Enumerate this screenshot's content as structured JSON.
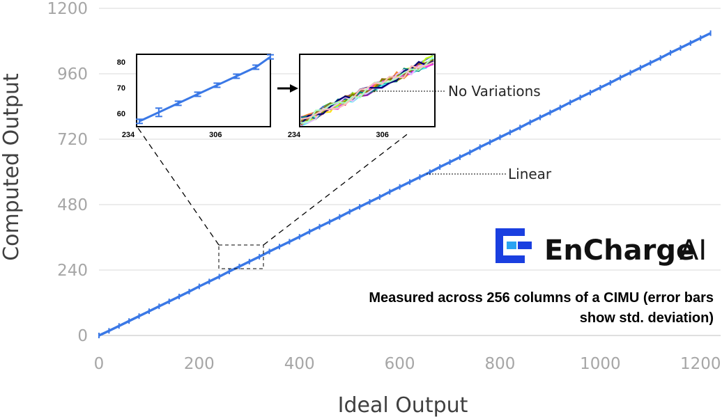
{
  "chart_data": {
    "type": "line",
    "xlabel": "Ideal Output",
    "ylabel": "Computed Output",
    "xlim": [
      0,
      1240
    ],
    "ylim": [
      0,
      1200
    ],
    "x_ticks": [
      "0",
      "200",
      "400",
      "600",
      "800",
      "1000",
      "1200"
    ],
    "y_ticks": [
      "0",
      "240",
      "480",
      "720",
      "960",
      "1200"
    ],
    "grid": "horizontal",
    "series": [
      {
        "x": [
          0,
          20,
          40,
          60,
          80,
          100,
          120,
          140,
          160,
          180,
          200,
          220,
          240,
          260,
          280,
          300,
          320,
          340,
          360,
          380,
          400,
          420,
          440,
          460,
          480,
          500,
          520,
          540,
          560,
          580,
          600,
          620,
          640,
          660,
          680,
          700,
          720,
          740,
          760,
          780,
          800,
          820,
          840,
          860,
          880,
          900,
          920,
          940,
          960,
          980,
          1000,
          1020,
          1040,
          1060,
          1080,
          1100,
          1120,
          1140,
          1160,
          1180,
          1200,
          1220
        ],
        "y": [
          0,
          17,
          35,
          53,
          71,
          89,
          107,
          125,
          143,
          161,
          180,
          198,
          216,
          235,
          253,
          271,
          289,
          308,
          326,
          344,
          362,
          381,
          399,
          417,
          435,
          454,
          472,
          490,
          508,
          527,
          545,
          563,
          581,
          599,
          618,
          636,
          654,
          672,
          691,
          709,
          727,
          745,
          763,
          782,
          800,
          818,
          836,
          855,
          873,
          891,
          909,
          927,
          946,
          964,
          982,
          1000,
          1018,
          1037,
          1055,
          1073,
          1091,
          1109
        ]
      }
    ],
    "annotations": [
      "No Variations",
      "Linear"
    ],
    "note": "Measured across 256 columns of a CIMU (error bars show std. deviation)",
    "note_lines": [
      "Measured across 256 columns of a CIMU (error bars",
      "show std. deviation)"
    ],
    "insets": [
      {
        "type": "line",
        "description_free": true,
        "x_ticks": [
          "234",
          "306"
        ],
        "y_ticks": [
          "60",
          "70",
          "80"
        ],
        "xlim": [
          234,
          342
        ],
        "ylim": [
          56,
          83
        ],
        "x": [
          234,
          250,
          266,
          282,
          298,
          314,
          330,
          342
        ],
        "y": [
          57,
          60.5,
          64,
          67.5,
          71,
          74.5,
          78,
          82
        ]
      },
      {
        "type": "line",
        "x_ticks": [
          "234",
          "306"
        ],
        "xlim": [
          234,
          342
        ],
        "ylim": [
          56,
          83
        ]
      }
    ]
  },
  "brand": {
    "name": "EnCharge",
    "suffix": "AI",
    "colors": {
      "dark_blue": "#1a3fe0",
      "light_blue": "#2aa3f2",
      "series": "#3a78e6"
    }
  }
}
